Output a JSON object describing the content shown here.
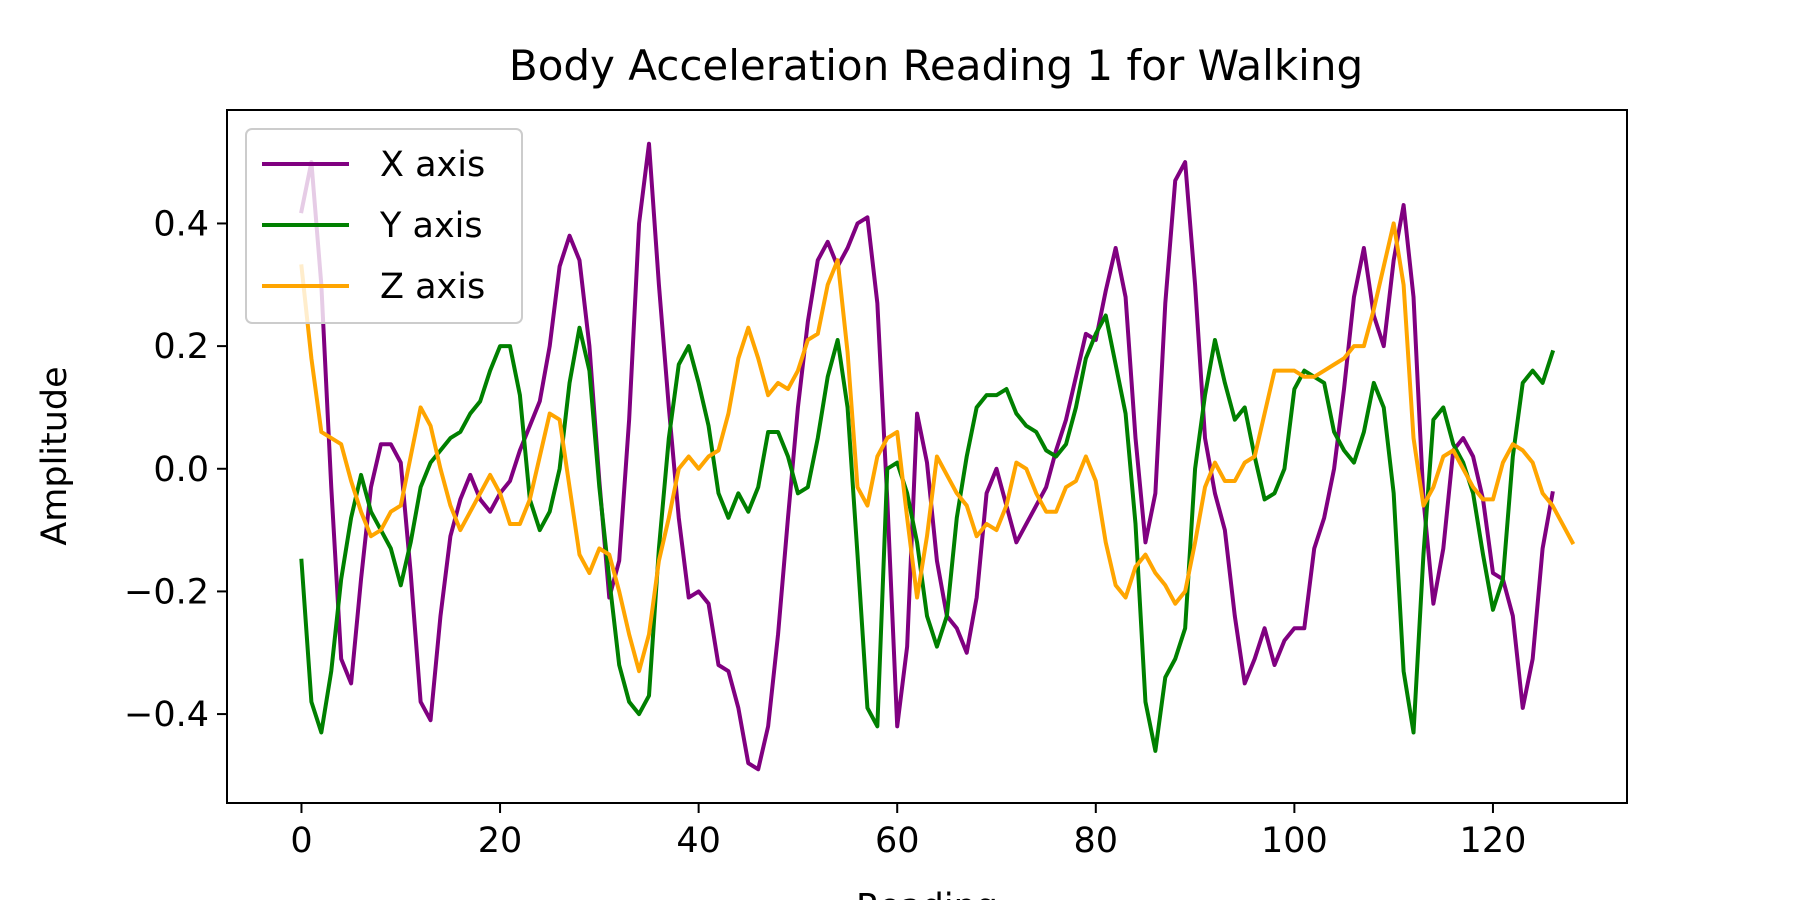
{
  "chart_data": {
    "type": "line",
    "title": "Body Acceleration Reading 1 for Walking",
    "xlabel": "Reading",
    "ylabel": "Amplitude",
    "xlim": [
      -7.5,
      133.5
    ],
    "ylim": [
      -0.545,
      0.585
    ],
    "xticks": [
      0,
      20,
      40,
      60,
      80,
      100,
      120
    ],
    "yticks": [
      -0.4,
      -0.2,
      0.0,
      0.2,
      0.4
    ],
    "xtick_labels": [
      "0",
      "20",
      "40",
      "60",
      "80",
      "100",
      "120"
    ],
    "ytick_labels": [
      "−0.4",
      "−0.2",
      "0.0",
      "0.2",
      "0.4"
    ],
    "grid": false,
    "legend_position": "upper-left",
    "series": [
      {
        "name": "X axis",
        "color": "#800080",
        "values": [
          0.42,
          0.5,
          0.3,
          -0.03,
          -0.31,
          -0.35,
          -0.18,
          -0.03,
          0.04,
          0.04,
          0.01,
          -0.17,
          -0.38,
          -0.41,
          -0.24,
          -0.11,
          -0.05,
          -0.01,
          -0.05,
          -0.07,
          -0.04,
          -0.02,
          0.03,
          0.07,
          0.11,
          0.2,
          0.33,
          0.38,
          0.34,
          0.2,
          -0.02,
          -0.21,
          -0.15,
          0.08,
          0.4,
          0.53,
          0.3,
          0.1,
          -0.08,
          -0.21,
          -0.2,
          -0.22,
          -0.32,
          -0.33,
          -0.39,
          -0.48,
          -0.49,
          -0.42,
          -0.27,
          -0.08,
          0.1,
          0.24,
          0.34,
          0.37,
          0.33,
          0.36,
          0.4,
          0.41,
          0.27,
          -0.05,
          -0.42,
          -0.29,
          0.09,
          0.01,
          -0.15,
          -0.24,
          -0.26,
          -0.3,
          -0.21,
          -0.04,
          0.0,
          -0.06,
          -0.12,
          -0.09,
          -0.06,
          -0.03,
          0.03,
          0.08,
          0.15,
          0.22,
          0.21,
          0.29,
          0.36,
          0.28,
          0.05,
          -0.12,
          -0.04,
          0.27,
          0.47,
          0.5,
          0.3,
          0.05,
          -0.04,
          -0.1,
          -0.24,
          -0.35,
          -0.31,
          -0.26,
          -0.32,
          -0.28,
          -0.26,
          -0.26,
          -0.13,
          -0.08,
          0.0,
          0.13,
          0.28,
          0.36,
          0.25,
          0.2,
          0.34,
          0.43,
          0.28,
          -0.05,
          -0.22,
          -0.13,
          0.03,
          0.05,
          0.02,
          -0.05,
          -0.17,
          -0.18,
          -0.24,
          -0.39,
          -0.31,
          -0.13,
          -0.04
        ]
      },
      {
        "name": "Y axis",
        "color": "#008000",
        "values": [
          -0.15,
          -0.38,
          -0.43,
          -0.33,
          -0.18,
          -0.08,
          -0.01,
          -0.07,
          -0.1,
          -0.13,
          -0.19,
          -0.12,
          -0.03,
          0.01,
          0.03,
          0.05,
          0.06,
          0.09,
          0.11,
          0.16,
          0.2,
          0.2,
          0.12,
          -0.05,
          -0.1,
          -0.07,
          0.0,
          0.14,
          0.23,
          0.16,
          -0.03,
          -0.18,
          -0.32,
          -0.38,
          -0.4,
          -0.37,
          -0.13,
          0.05,
          0.17,
          0.2,
          0.14,
          0.07,
          -0.04,
          -0.08,
          -0.04,
          -0.07,
          -0.03,
          0.06,
          0.06,
          0.02,
          -0.04,
          -0.03,
          0.05,
          0.15,
          0.21,
          0.1,
          -0.14,
          -0.39,
          -0.42,
          0.0,
          0.01,
          -0.04,
          -0.12,
          -0.24,
          -0.29,
          -0.24,
          -0.08,
          0.02,
          0.1,
          0.12,
          0.12,
          0.13,
          0.09,
          0.07,
          0.06,
          0.03,
          0.02,
          0.04,
          0.1,
          0.18,
          0.22,
          0.25,
          0.17,
          0.09,
          -0.09,
          -0.38,
          -0.46,
          -0.34,
          -0.31,
          -0.26,
          0.0,
          0.12,
          0.21,
          0.14,
          0.08,
          0.1,
          0.02,
          -0.05,
          -0.04,
          0.0,
          0.13,
          0.16,
          0.15,
          0.14,
          0.06,
          0.03,
          0.01,
          0.06,
          0.14,
          0.1,
          -0.04,
          -0.33,
          -0.43,
          -0.14,
          0.08,
          0.1,
          0.04,
          0.01,
          -0.04,
          -0.14,
          -0.23,
          -0.18,
          0.02,
          0.14,
          0.16,
          0.14,
          0.19
        ]
      },
      {
        "name": "Z axis",
        "color": "#FFA500",
        "values": [
          0.33,
          0.18,
          0.06,
          0.05,
          0.04,
          -0.02,
          -0.07,
          -0.11,
          -0.1,
          -0.07,
          -0.06,
          0.02,
          0.1,
          0.07,
          0.0,
          -0.06,
          -0.1,
          -0.07,
          -0.04,
          -0.01,
          -0.04,
          -0.09,
          -0.09,
          -0.05,
          0.02,
          0.09,
          0.08,
          -0.03,
          -0.14,
          -0.17,
          -0.13,
          -0.14,
          -0.2,
          -0.27,
          -0.33,
          -0.27,
          -0.15,
          -0.08,
          0.0,
          0.02,
          0.0,
          0.02,
          0.03,
          0.09,
          0.18,
          0.23,
          0.18,
          0.12,
          0.14,
          0.13,
          0.16,
          0.21,
          0.22,
          0.3,
          0.34,
          0.19,
          -0.03,
          -0.06,
          0.02,
          0.05,
          0.06,
          -0.08,
          -0.21,
          -0.11,
          0.02,
          -0.01,
          -0.04,
          -0.06,
          -0.11,
          -0.09,
          -0.1,
          -0.06,
          0.01,
          0.0,
          -0.04,
          -0.07,
          -0.07,
          -0.03,
          -0.02,
          0.02,
          -0.02,
          -0.12,
          -0.19,
          -0.21,
          -0.16,
          -0.14,
          -0.17,
          -0.19,
          -0.22,
          -0.2,
          -0.12,
          -0.03,
          0.01,
          -0.02,
          -0.02,
          0.01,
          0.02,
          0.09,
          0.16,
          0.16,
          0.16,
          0.15,
          0.15,
          0.16,
          0.17,
          0.18,
          0.2,
          0.2,
          0.26,
          0.33,
          0.4,
          0.3,
          0.05,
          -0.06,
          -0.03,
          0.02,
          0.03,
          0.0,
          -0.03,
          -0.05,
          -0.05,
          0.01,
          0.04,
          0.03,
          0.01,
          -0.04,
          -0.06,
          -0.09,
          -0.12
        ]
      }
    ]
  }
}
